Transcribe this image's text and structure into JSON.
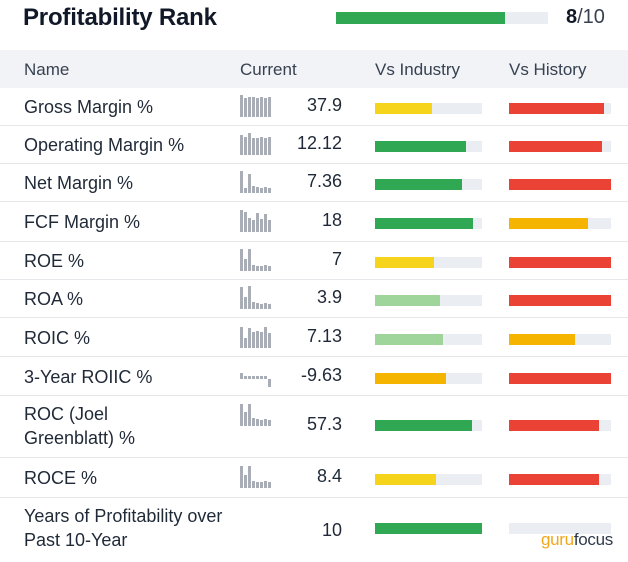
{
  "header": {
    "title": "Profitability Rank",
    "rank_value": "8",
    "rank_total": "/10",
    "rank_fraction": 0.8
  },
  "columns": {
    "name": "Name",
    "current": "Current",
    "vs_industry": "Vs Industry",
    "vs_history": "Vs History"
  },
  "colors": {
    "green": "#30a753",
    "light_green": "#9fd49a",
    "yellow": "#f6d41b",
    "orange": "#f5b400",
    "red": "#ea4335",
    "track": "#eaedf1"
  },
  "rows": [
    {
      "label": "Gross Margin %",
      "value": "37.9",
      "industry": {
        "fraction": 0.53,
        "color": "#f6d41b"
      },
      "history": {
        "fraction": 0.93,
        "color": "#ea4335"
      },
      "spark": [
        0.9,
        0.8,
        0.85,
        0.85,
        0.8,
        0.85,
        0.8,
        0.85
      ]
    },
    {
      "label": "Operating Margin %",
      "value": "12.12",
      "industry": {
        "fraction": 0.85,
        "color": "#30a753"
      },
      "history": {
        "fraction": 0.91,
        "color": "#ea4335"
      },
      "spark": [
        0.85,
        0.75,
        0.9,
        0.7,
        0.7,
        0.75,
        0.7,
        0.75
      ]
    },
    {
      "label": "Net Margin %",
      "value": "7.36",
      "industry": {
        "fraction": 0.81,
        "color": "#30a753"
      },
      "history": {
        "fraction": 1.0,
        "color": "#ea4335"
      },
      "spark": [
        0.9,
        0.2,
        0.8,
        0.3,
        0.25,
        0.2,
        0.25,
        0.2
      ]
    },
    {
      "label": "FCF Margin %",
      "value": "18",
      "industry": {
        "fraction": 0.92,
        "color": "#30a753"
      },
      "history": {
        "fraction": 0.77,
        "color": "#f5b400"
      },
      "spark": [
        0.9,
        0.85,
        0.6,
        0.5,
        0.8,
        0.55,
        0.75,
        0.5
      ]
    },
    {
      "label": "ROE %",
      "value": "7",
      "industry": {
        "fraction": 0.55,
        "color": "#f6d41b"
      },
      "history": {
        "fraction": 1.0,
        "color": "#ea4335"
      },
      "spark": [
        0.9,
        0.5,
        0.9,
        0.25,
        0.2,
        0.2,
        0.25,
        0.2
      ]
    },
    {
      "label": "ROA %",
      "value": "3.9",
      "industry": {
        "fraction": 0.61,
        "color": "#9fd49a"
      },
      "history": {
        "fraction": 1.0,
        "color": "#ea4335"
      },
      "spark": [
        0.9,
        0.5,
        0.95,
        0.3,
        0.25,
        0.2,
        0.25,
        0.2
      ]
    },
    {
      "label": "ROIC %",
      "value": "7.13",
      "industry": {
        "fraction": 0.64,
        "color": "#9fd49a"
      },
      "history": {
        "fraction": 0.65,
        "color": "#f5b400"
      },
      "spark": [
        0.85,
        0.4,
        0.8,
        0.65,
        0.7,
        0.65,
        0.85,
        0.6
      ]
    },
    {
      "label": "3-Year ROIIC %",
      "value": "-9.63",
      "industry": {
        "fraction": 0.66,
        "color": "#f5b400"
      },
      "history": {
        "fraction": 1.0,
        "color": "#ea4335"
      },
      "spark": [
        0.3,
        0.12,
        0.12,
        0.12,
        0.12,
        0.12,
        0.12,
        -0.45
      ]
    },
    {
      "label": "ROC (Joel Greenblatt) %",
      "value": "57.3",
      "industry": {
        "fraction": 0.91,
        "color": "#30a753"
      },
      "history": {
        "fraction": 0.88,
        "color": "#ea4335"
      },
      "spark": [
        0.9,
        0.6,
        0.9,
        0.35,
        0.3,
        0.25,
        0.3,
        0.25
      ]
    },
    {
      "label": "ROCE %",
      "value": "8.4",
      "industry": {
        "fraction": 0.57,
        "color": "#f6d41b"
      },
      "history": {
        "fraction": 0.88,
        "color": "#ea4335"
      },
      "spark": [
        0.9,
        0.55,
        0.9,
        0.3,
        0.25,
        0.25,
        0.3,
        0.25
      ]
    },
    {
      "label": "Years of Profitability over Past 10-Year",
      "value": "10",
      "industry": {
        "fraction": 1.0,
        "color": "#30a753"
      },
      "history": {
        "fraction": 0.0,
        "color": "#ea4335"
      },
      "spark": []
    }
  ],
  "logo": {
    "part1": "guru",
    "part2": "focus"
  }
}
